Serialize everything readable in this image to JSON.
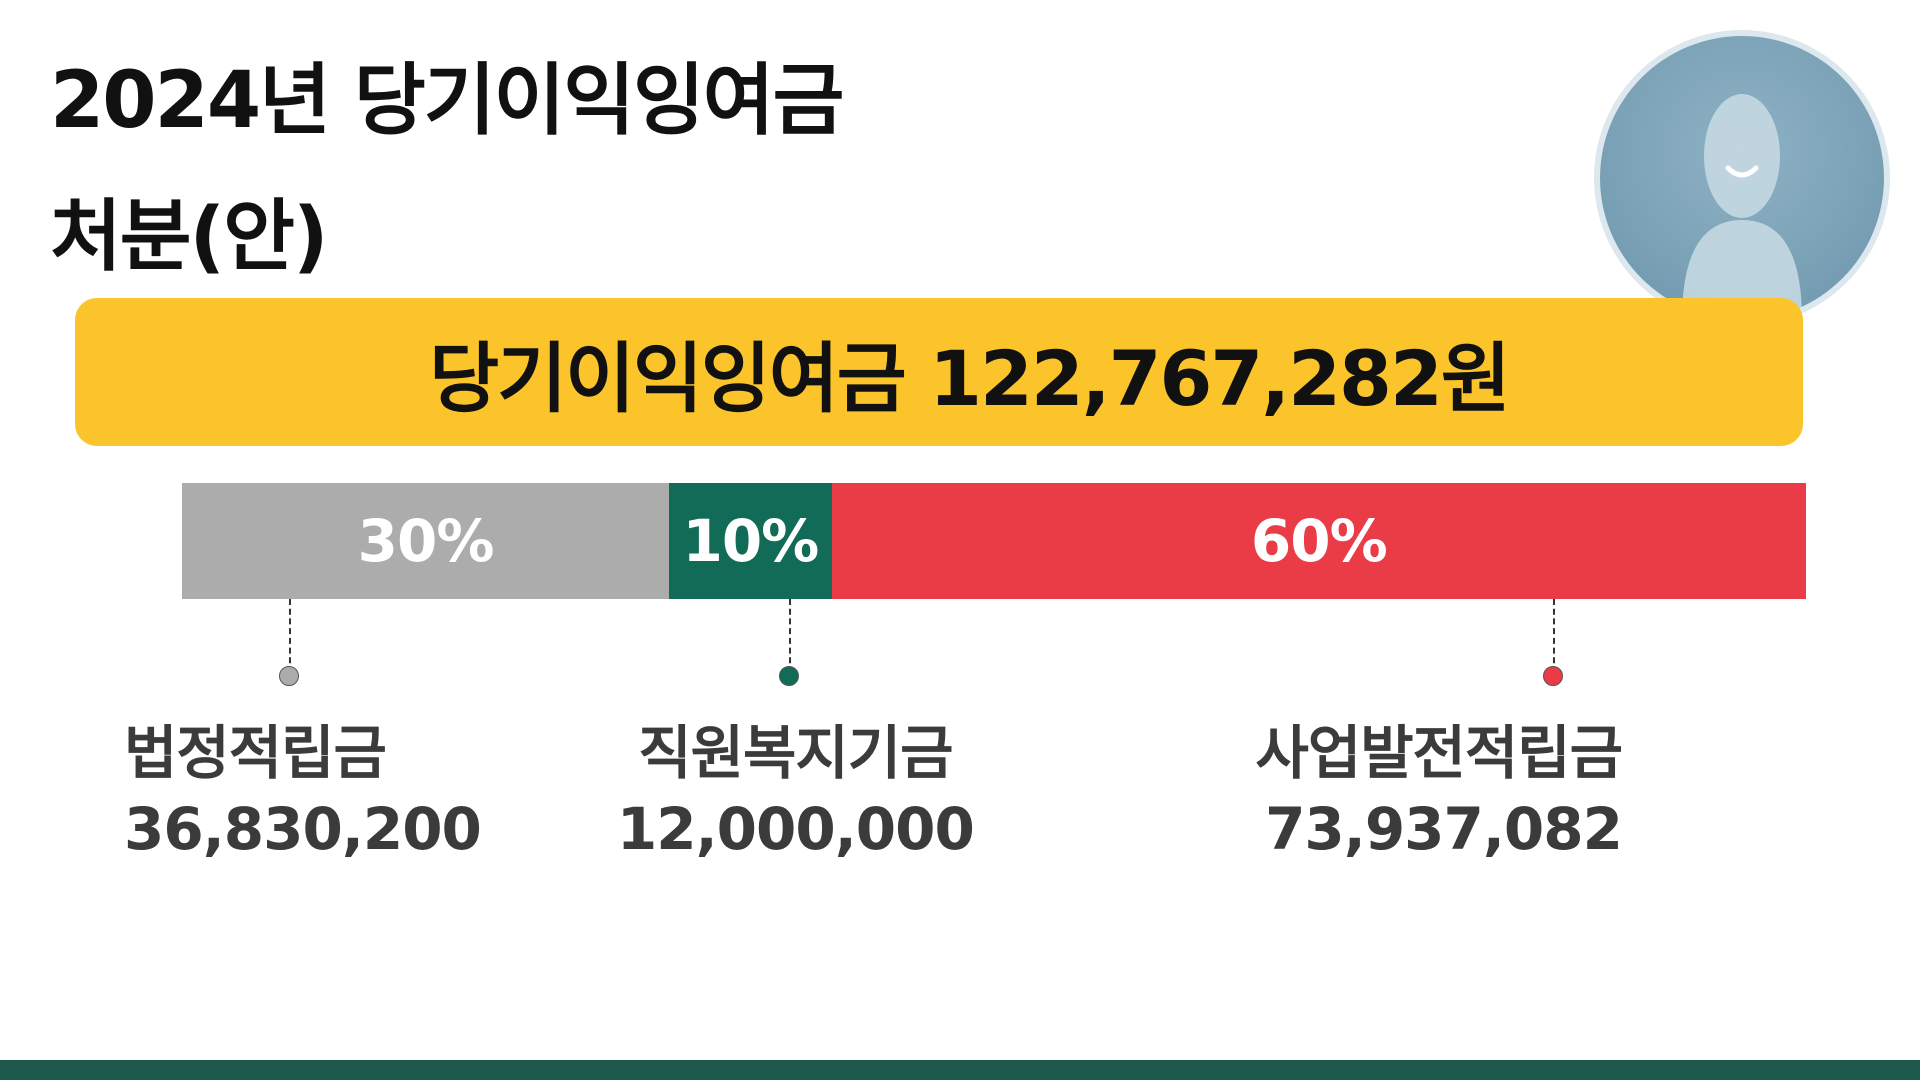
{
  "title": {
    "line1": "2024년 당기이익잉여금",
    "line2": "처분(안)"
  },
  "total_banner": {
    "text": "당기이익잉여금 122,767,282원",
    "color": "#fbc42a"
  },
  "chart_data": {
    "type": "bar",
    "orientation": "horizontal-stacked",
    "total_label": "당기이익잉여금 122,767,282원",
    "total_value": 122767282,
    "segments": [
      {
        "name": "법정적립금",
        "percent": 30,
        "percent_label": "30%",
        "amount": 36830200,
        "amount_label": "36,830,200",
        "color": "#acacac"
      },
      {
        "name": "직원복지기금",
        "percent": 10,
        "percent_label": "10%",
        "amount": 12000000,
        "amount_label": "12,000,000",
        "color": "#116b56"
      },
      {
        "name": "사업발전적립금",
        "percent": 60,
        "percent_label": "60%",
        "amount": 73937082,
        "amount_label": "73,937,082",
        "color": "#ea3c46"
      }
    ]
  },
  "footer": {
    "color": "#1e5a4c"
  },
  "avatar": {
    "icon": "person-avatar-icon"
  }
}
